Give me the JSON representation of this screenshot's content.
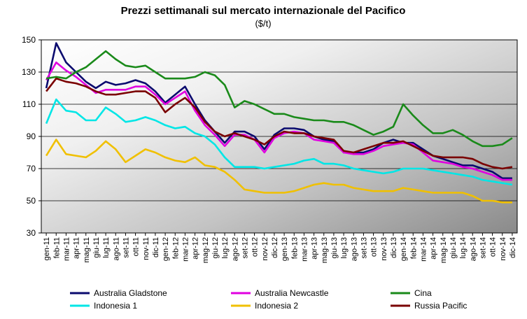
{
  "chart_data": {
    "type": "line",
    "title": "Prezzi settimanali sul mercato internazionale del Pacifico",
    "subtitle": "($/t)",
    "xlabel": "",
    "ylabel": "",
    "ylim": [
      30,
      150
    ],
    "yticks": [
      30,
      50,
      70,
      90,
      110,
      130,
      150
    ],
    "grid": true,
    "legend_position": "bottom",
    "categories": [
      "gen-11",
      "feb-11",
      "mar-11",
      "apr-11",
      "mag-11",
      "giu-11",
      "lug-11",
      "ago-11",
      "set-11",
      "ott-11",
      "nov-11",
      "dic-11",
      "gen-12",
      "feb-12",
      "mar-12",
      "apr-12",
      "mag-12",
      "giu-12",
      "lug-12",
      "ago-12",
      "set-12",
      "ott-12",
      "nov-12",
      "dic-12",
      "gen-13",
      "feb-13",
      "mar-13",
      "apr-13",
      "mag-13",
      "giu-13",
      "lug-13",
      "ago-13",
      "set-13",
      "ott-13",
      "nov-13",
      "dic-13",
      "gen-14",
      "feb-14",
      "mar-14",
      "apr-14",
      "mag-14",
      "giu-14",
      "lug-14",
      "ago-14",
      "set-14",
      "ott-14",
      "nov-14",
      "dic-14"
    ],
    "series": [
      {
        "name": "Australia Gladstone",
        "color": "#0a0a6e",
        "values": [
          120,
          148,
          136,
          130,
          124,
          120,
          124,
          122,
          123,
          125,
          123,
          118,
          111,
          116,
          121,
          110,
          100,
          93,
          86,
          93,
          93,
          90,
          82,
          91,
          95,
          95,
          94,
          90,
          88,
          87,
          80,
          80,
          80,
          82,
          86,
          88,
          86,
          86,
          82,
          78,
          76,
          74,
          72,
          72,
          70,
          68,
          64,
          64
        ]
      },
      {
        "name": "Australia Newcastle",
        "color": "#e000e0",
        "values": [
          125,
          136,
          131,
          127,
          122,
          117,
          119,
          119,
          119,
          121,
          121,
          116,
          110,
          114,
          118,
          106,
          97,
          91,
          84,
          91,
          91,
          88,
          80,
          89,
          92,
          93,
          92,
          88,
          87,
          86,
          80,
          79,
          79,
          81,
          84,
          85,
          86,
          85,
          80,
          75,
          74,
          73,
          71,
          70,
          68,
          66,
          63,
          63
        ]
      },
      {
        "name": "Cina",
        "color": "#1a8a1a",
        "values": [
          126,
          127,
          126,
          130,
          133,
          138,
          143,
          138,
          134,
          133,
          134,
          130,
          126,
          126,
          126,
          127,
          130,
          128,
          122,
          108,
          112,
          110,
          107,
          104,
          104,
          102,
          101,
          100,
          100,
          99,
          99,
          97,
          94,
          91,
          93,
          96,
          110,
          103,
          97,
          92,
          92,
          94,
          91,
          87,
          84,
          84,
          85,
          89
        ]
      },
      {
        "name": "Indonesia 1",
        "color": "#00e6e6",
        "values": [
          98,
          113,
          106,
          105,
          100,
          100,
          108,
          104,
          99,
          100,
          102,
          100,
          97,
          95,
          96,
          92,
          90,
          85,
          77,
          71,
          71,
          71,
          70,
          71,
          72,
          73,
          75,
          76,
          73,
          73,
          72,
          70,
          69,
          68,
          67,
          68,
          70,
          70,
          70,
          69,
          68,
          67,
          66,
          65,
          63,
          62,
          61,
          60
        ]
      },
      {
        "name": "Indonesia 2",
        "color": "#f0c000",
        "values": [
          78,
          88,
          79,
          78,
          77,
          81,
          87,
          82,
          74,
          78,
          82,
          80,
          77,
          75,
          74,
          77,
          72,
          71,
          68,
          63,
          57,
          56,
          55,
          55,
          55,
          56,
          58,
          60,
          61,
          60,
          60,
          58,
          57,
          56,
          56,
          56,
          58,
          57,
          56,
          55,
          55,
          55,
          55,
          53,
          50,
          50,
          49,
          49
        ]
      },
      {
        "name": "Russia Pacific",
        "color": "#7a0000",
        "values": [
          118,
          126,
          124,
          123,
          121,
          118,
          116,
          116,
          117,
          118,
          118,
          114,
          105,
          110,
          114,
          108,
          99,
          93,
          90,
          92,
          90,
          88,
          85,
          90,
          93,
          92,
          92,
          90,
          89,
          88,
          81,
          80,
          82,
          84,
          86,
          86,
          87,
          84,
          81,
          78,
          77,
          77,
          77,
          76,
          73,
          71,
          70,
          71
        ]
      }
    ]
  }
}
